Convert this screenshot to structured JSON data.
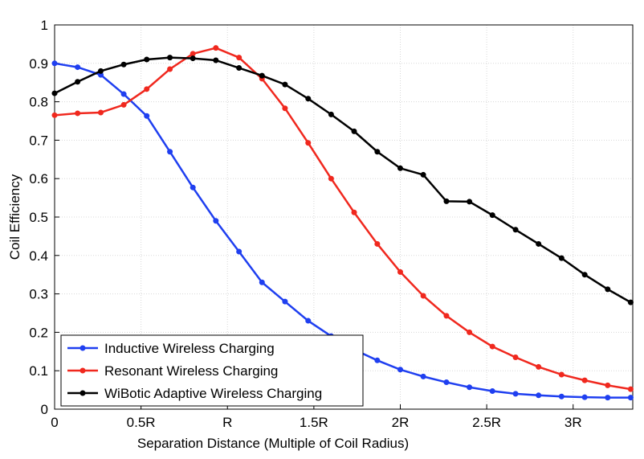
{
  "chart_data": {
    "type": "line",
    "xlabel": "Separation Distance (Multiple of Coil Radius)",
    "ylabel": "Coil Efficiency",
    "x": [
      0,
      0.133,
      0.267,
      0.4,
      0.533,
      0.667,
      0.8,
      0.933,
      1.067,
      1.2,
      1.333,
      1.467,
      1.6,
      1.733,
      1.867,
      2,
      2.133,
      2.267,
      2.4,
      2.533,
      2.667,
      2.8,
      2.933,
      3.067,
      3.2,
      3.333
    ],
    "series": [
      {
        "name": "Inductive Wireless Charging",
        "color": "#1f3ff0",
        "values": [
          0.9,
          0.89,
          0.87,
          0.82,
          0.763,
          0.67,
          0.577,
          0.49,
          0.41,
          0.33,
          0.28,
          0.23,
          0.19,
          0.155,
          0.127,
          0.103,
          0.085,
          0.07,
          0.057,
          0.047,
          0.04,
          0.036,
          0.033,
          0.031,
          0.03,
          0.03
        ]
      },
      {
        "name": "Resonant Wireless Charging",
        "color": "#f0281e",
        "values": [
          0.765,
          0.77,
          0.772,
          0.792,
          0.833,
          0.885,
          0.925,
          0.94,
          0.915,
          0.86,
          0.783,
          0.693,
          0.6,
          0.512,
          0.43,
          0.357,
          0.295,
          0.243,
          0.2,
          0.163,
          0.135,
          0.11,
          0.09,
          0.075,
          0.062,
          0.052
        ]
      },
      {
        "name": "WiBotic Adaptive Wireless Charging",
        "color": "#000000",
        "values": [
          0.822,
          0.852,
          0.88,
          0.897,
          0.91,
          0.915,
          0.913,
          0.908,
          0.888,
          0.868,
          0.845,
          0.808,
          0.767,
          0.723,
          0.67,
          0.627,
          0.61,
          0.541,
          0.54,
          0.505,
          0.467,
          0.43,
          0.393,
          0.35,
          0.312,
          0.278
        ]
      }
    ],
    "xlim": [
      0,
      3.345
    ],
    "xticks": [
      0,
      {
        "value": 0.5,
        "label": "0.5R"
      },
      {
        "value": 1,
        "label": "R"
      },
      {
        "value": 1.5,
        "label": "1.5R"
      },
      {
        "value": 2,
        "label": "2R"
      },
      {
        "value": 2.5,
        "label": "2.5R"
      },
      {
        "value": 3,
        "label": "3R"
      }
    ],
    "ylim": [
      0,
      1
    ],
    "yticks": [
      0,
      0.1,
      0.2,
      0.3,
      0.4,
      0.5,
      0.6,
      0.7,
      0.8,
      0.9,
      1
    ],
    "grid": true,
    "legend": "lower left"
  }
}
